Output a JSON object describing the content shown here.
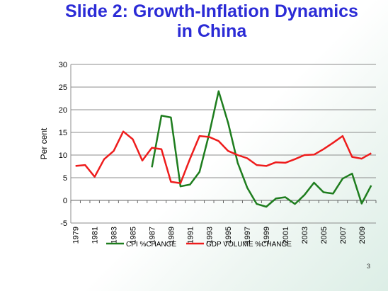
{
  "slide": {
    "title_line1": "Slide 2: Growth-Inflation Dynamics",
    "title_line2": "in China",
    "page_number": "3"
  },
  "chart_data": {
    "type": "line",
    "ylabel": "Per cent",
    "ylim": [
      -5,
      30
    ],
    "yticks": [
      -5,
      0,
      5,
      10,
      15,
      20,
      25,
      30
    ],
    "xlim": [
      1979,
      2010
    ],
    "xticks": [
      "1979",
      "1981",
      "1983",
      "1985",
      "1987",
      "1989",
      "1991",
      "1993",
      "1995",
      "1997",
      "1999",
      "2001",
      "2003",
      "2005",
      "2007",
      "2009"
    ],
    "grid": true,
    "legend": "bottom",
    "series": [
      {
        "name": "CPI %CHANGE",
        "color": "#1e7d1e",
        "x": [
          1987,
          1988,
          1989,
          1990,
          1991,
          1992,
          1993,
          1994,
          1995,
          1996,
          1997,
          1998,
          1999,
          2000,
          2001,
          2002,
          2003,
          2004,
          2005,
          2006,
          2007,
          2008,
          2009,
          2010
        ],
        "y": [
          7.3,
          18.7,
          18.3,
          3.1,
          3.5,
          6.3,
          14.6,
          24.1,
          17.1,
          8.3,
          2.8,
          -0.8,
          -1.4,
          0.4,
          0.7,
          -0.8,
          1.2,
          3.9,
          1.8,
          1.5,
          4.8,
          5.9,
          -0.7,
          3.3
        ]
      },
      {
        "name": "GDP VOLUME %CHANGE",
        "color": "#ee1c1c",
        "x": [
          1979,
          1980,
          1981,
          1982,
          1983,
          1984,
          1985,
          1986,
          1987,
          1988,
          1989,
          1990,
          1991,
          1992,
          1993,
          1994,
          1995,
          1996,
          1997,
          1998,
          1999,
          2000,
          2001,
          2002,
          2003,
          2004,
          2005,
          2006,
          2007,
          2008,
          2009,
          2010
        ],
        "y": [
          7.6,
          7.8,
          5.2,
          9.1,
          10.9,
          15.2,
          13.5,
          8.8,
          11.6,
          11.3,
          4.1,
          3.8,
          9.2,
          14.2,
          14.0,
          13.1,
          10.9,
          10.0,
          9.3,
          7.8,
          7.6,
          8.4,
          8.3,
          9.1,
          10.0,
          10.1,
          11.3,
          12.7,
          14.2,
          9.6,
          9.2,
          10.4
        ]
      }
    ]
  }
}
